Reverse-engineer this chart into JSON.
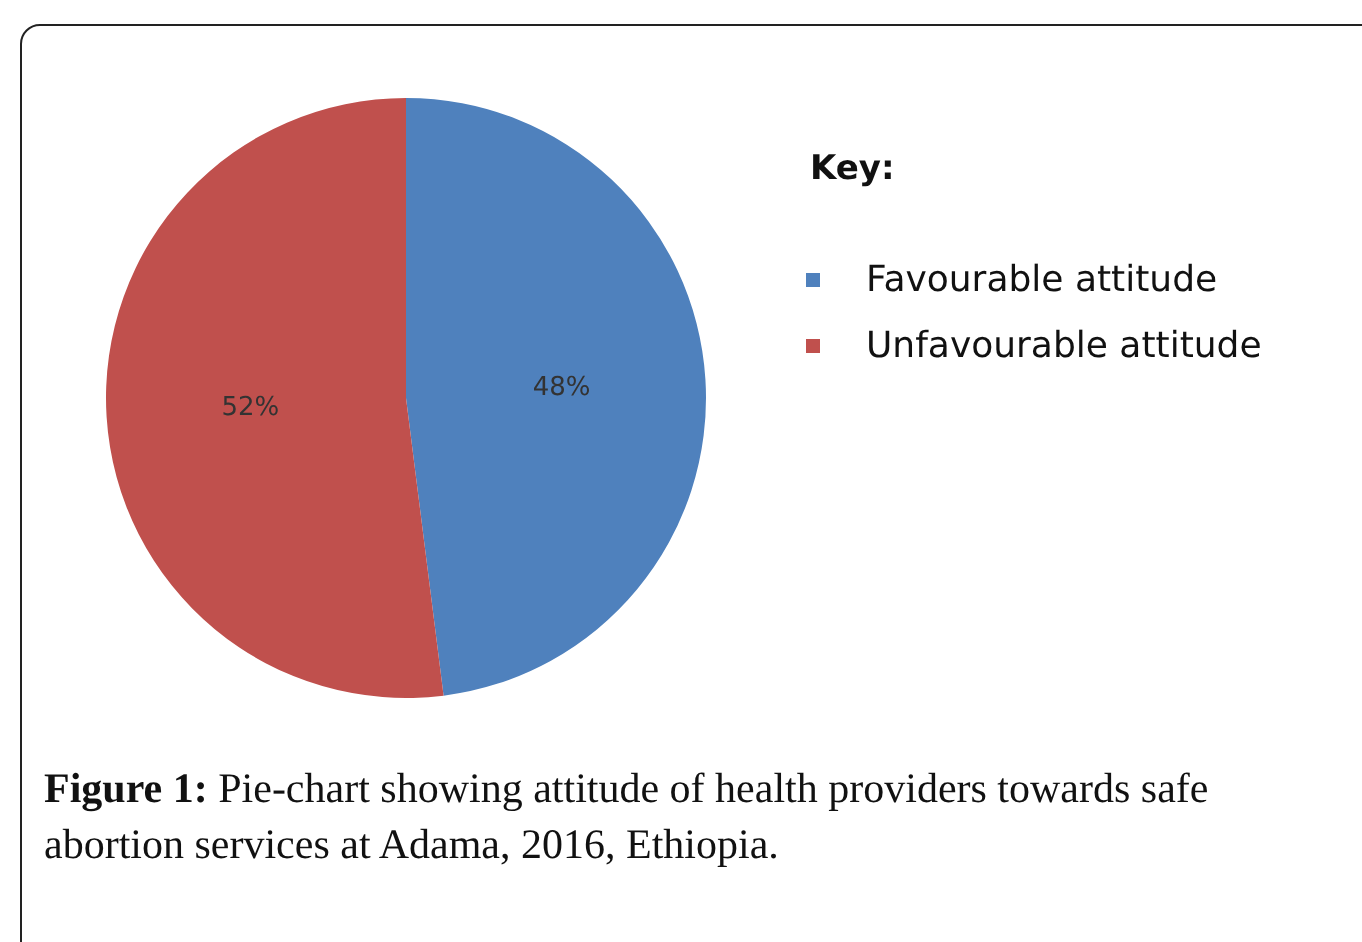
{
  "chart_data": {
    "type": "pie",
    "categories": [
      "Favourable attitude",
      "Unfavourable attitude"
    ],
    "values": [
      48,
      52
    ],
    "colors": [
      "#4f81bd",
      "#c0504d"
    ],
    "value_labels": [
      "48%",
      "52%"
    ],
    "legend": "right",
    "legend_title": "Key:",
    "annotations": [
      "Figure 1: Pie-chart showing attitude of health providers towards safe abortion services at Adama, 2016, Ethiopia."
    ]
  }
}
